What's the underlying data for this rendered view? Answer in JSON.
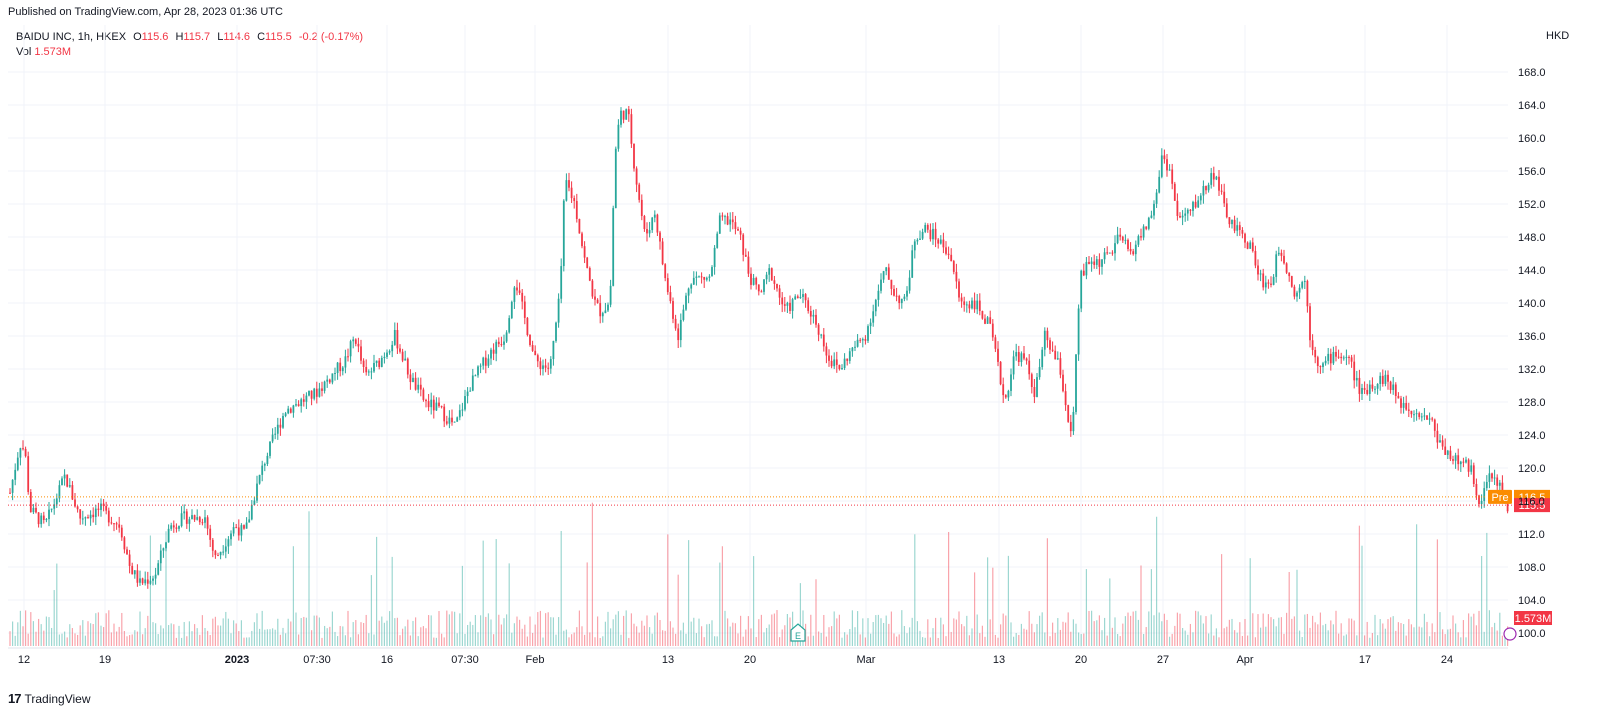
{
  "published": "Published on TradingView.com, Apr 28, 2023 01:36 UTC",
  "legend": {
    "symbol": "BAIDU INC, 1h, HKEX",
    "o_label": "O",
    "o_value": "115.6",
    "h_label": "H",
    "h_value": "115.7",
    "l_label": "L",
    "l_value": "114.6",
    "c_label": "C",
    "c_value": "115.5",
    "change": "-0.2 (-0.17%)",
    "vol_label": "Vol",
    "vol_value": "1.573M"
  },
  "currency": "HKD",
  "footer": {
    "logo": "17",
    "brand": "TradingView"
  },
  "colors": {
    "up": "#26A69A",
    "down": "#F23645",
    "pre": "#FB8C00",
    "grid": "#F0F3FA",
    "axis_text": "#131722"
  },
  "chart_data": {
    "type": "candlestick",
    "ylim": [
      98,
      170
    ],
    "y_ticks": [
      100.0,
      104.0,
      108.0,
      112.0,
      116.0,
      120.0,
      124.0,
      128.0,
      132.0,
      136.0,
      140.0,
      144.0,
      148.0,
      152.0,
      156.0,
      160.0,
      164.0,
      168.0
    ],
    "x_ticks": [
      "12",
      "19",
      "2023",
      "07:30",
      "16",
      "07:30",
      "Feb",
      "13",
      "20",
      "Mar",
      "13",
      "20",
      "27",
      "Apr",
      "17",
      "24"
    ],
    "x_tick_positions": [
      12,
      93,
      225,
      305,
      375,
      453,
      523,
      656,
      738,
      854,
      987,
      1069,
      1151,
      1233,
      1353,
      1435
    ],
    "price_path": [
      [
        0,
        117
      ],
      [
        10,
        123
      ],
      [
        15,
        122
      ],
      [
        20,
        115
      ],
      [
        35,
        113
      ],
      [
        55,
        119
      ],
      [
        70,
        114
      ],
      [
        90,
        115
      ],
      [
        110,
        113
      ],
      [
        120,
        108
      ],
      [
        130,
        106
      ],
      [
        145,
        107
      ],
      [
        160,
        113
      ],
      [
        175,
        114
      ],
      [
        195,
        114
      ],
      [
        205,
        109
      ],
      [
        215,
        111
      ],
      [
        225,
        113
      ],
      [
        235,
        112
      ],
      [
        245,
        117
      ],
      [
        255,
        121
      ],
      [
        265,
        124
      ],
      [
        275,
        127
      ],
      [
        290,
        128
      ],
      [
        305,
        129
      ],
      [
        320,
        131
      ],
      [
        335,
        133
      ],
      [
        345,
        136
      ],
      [
        355,
        131
      ],
      [
        370,
        133
      ],
      [
        385,
        136
      ],
      [
        400,
        131
      ],
      [
        415,
        128
      ],
      [
        430,
        127
      ],
      [
        445,
        125
      ],
      [
        460,
        130
      ],
      [
        480,
        134
      ],
      [
        495,
        136
      ],
      [
        505,
        143
      ],
      [
        515,
        138
      ],
      [
        525,
        133
      ],
      [
        540,
        132
      ],
      [
        550,
        141
      ],
      [
        555,
        155
      ],
      [
        565,
        152
      ],
      [
        575,
        145
      ],
      [
        585,
        140
      ],
      [
        590,
        139
      ],
      [
        600,
        140
      ],
      [
        605,
        158
      ],
      [
        610,
        163
      ],
      [
        618,
        163
      ],
      [
        625,
        156
      ],
      [
        635,
        148
      ],
      [
        645,
        151
      ],
      [
        655,
        143
      ],
      [
        668,
        136
      ],
      [
        680,
        143
      ],
      [
        700,
        143
      ],
      [
        710,
        150
      ],
      [
        720,
        150
      ],
      [
        730,
        148
      ],
      [
        740,
        143
      ],
      [
        750,
        141
      ],
      [
        760,
        144
      ],
      [
        775,
        139
      ],
      [
        790,
        141
      ],
      [
        805,
        138
      ],
      [
        820,
        133
      ],
      [
        830,
        132
      ],
      [
        840,
        134
      ],
      [
        855,
        136
      ],
      [
        865,
        140
      ],
      [
        875,
        144
      ],
      [
        885,
        141
      ],
      [
        895,
        140
      ],
      [
        905,
        148
      ],
      [
        915,
        149
      ],
      [
        925,
        148
      ],
      [
        940,
        146
      ],
      [
        950,
        140
      ],
      [
        965,
        140
      ],
      [
        980,
        137
      ],
      [
        990,
        131
      ],
      [
        995,
        128
      ],
      [
        1005,
        134
      ],
      [
        1015,
        133
      ],
      [
        1025,
        129
      ],
      [
        1035,
        136
      ],
      [
        1050,
        132
      ],
      [
        1058,
        126
      ],
      [
        1062,
        123
      ],
      [
        1070,
        143
      ],
      [
        1080,
        145
      ],
      [
        1090,
        145
      ],
      [
        1100,
        146
      ],
      [
        1110,
        148
      ],
      [
        1120,
        146
      ],
      [
        1135,
        149
      ],
      [
        1145,
        152
      ],
      [
        1152,
        158
      ],
      [
        1160,
        156
      ],
      [
        1168,
        150
      ],
      [
        1180,
        151
      ],
      [
        1195,
        154
      ],
      [
        1205,
        156
      ],
      [
        1215,
        151
      ],
      [
        1225,
        149
      ],
      [
        1240,
        147
      ],
      [
        1250,
        143
      ],
      [
        1260,
        142
      ],
      [
        1270,
        147
      ],
      [
        1285,
        141
      ],
      [
        1295,
        143
      ],
      [
        1300,
        136
      ],
      [
        1310,
        132
      ],
      [
        1325,
        134
      ],
      [
        1340,
        133
      ],
      [
        1350,
        129
      ],
      [
        1360,
        130
      ],
      [
        1375,
        131
      ],
      [
        1390,
        128
      ],
      [
        1405,
        127
      ],
      [
        1420,
        126
      ],
      [
        1430,
        123
      ],
      [
        1445,
        121
      ],
      [
        1460,
        120
      ],
      [
        1470,
        116
      ],
      [
        1480,
        119
      ],
      [
        1490,
        118
      ],
      [
        1500,
        114
      ],
      [
        1510,
        115
      ]
    ],
    "pre_label": "Pre",
    "pre_price": 116.5,
    "last_price": 115.5,
    "last_volume": "1.573M"
  }
}
